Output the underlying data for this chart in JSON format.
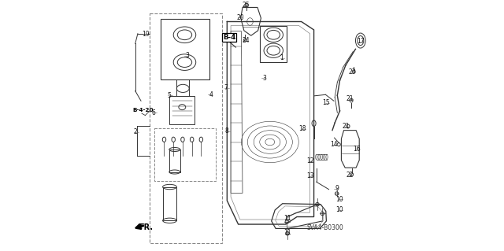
{
  "bg_color": "#ffffff",
  "diagram_color": "#333333",
  "text_SVA": "SVA4-B0300",
  "text_FR": "FR.",
  "text_B4": "B-4",
  "text_B420": "B-4-20"
}
